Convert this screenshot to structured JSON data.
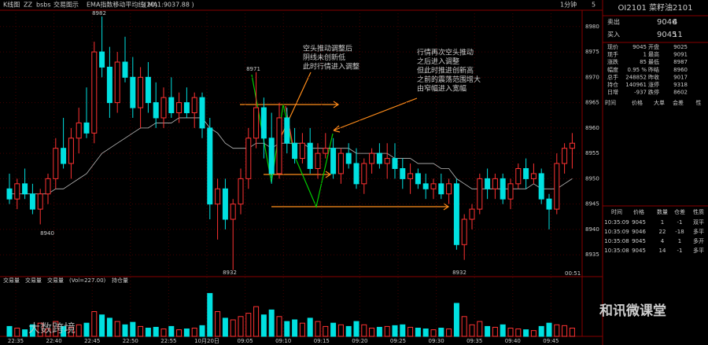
{
  "toolbar": {
    "items": [
      "K线图",
      "ZZ",
      "bsbs",
      "交易图示",
      "EMA指数移动平均线(20)",
      "( MA1:9037.88 )"
    ],
    "period": "1分钟",
    "count": "5"
  },
  "chart_data": {
    "type": "candlestick",
    "candles": [
      [
        8948,
        8951,
        8945,
        8946
      ],
      [
        8946,
        8950,
        8944,
        8949
      ],
      [
        8949,
        8952,
        8946,
        8947
      ],
      [
        8947,
        8949,
        8943,
        8944
      ],
      [
        8944,
        8948,
        8941,
        8947
      ],
      [
        8947,
        8951,
        8945,
        8950
      ],
      [
        8950,
        8958,
        8948,
        8956
      ],
      [
        8956,
        8962,
        8952,
        8953
      ],
      [
        8953,
        8960,
        8950,
        8958
      ],
      [
        8958,
        8964,
        8955,
        8961
      ],
      [
        8961,
        8968,
        8958,
        8959
      ],
      [
        8959,
        8977,
        8957,
        8975
      ],
      [
        8975,
        8982,
        8970,
        8972
      ],
      [
        8972,
        8976,
        8962,
        8965
      ],
      [
        8965,
        8975,
        8963,
        8973
      ],
      [
        8973,
        8978,
        8969,
        8970
      ],
      [
        8970,
        8974,
        8962,
        8964
      ],
      [
        8964,
        8972,
        8960,
        8970
      ],
      [
        8970,
        8973,
        8963,
        8965
      ],
      [
        8965,
        8969,
        8960,
        8962
      ],
      [
        8962,
        8968,
        8960,
        8966
      ],
      [
        8966,
        8970,
        8962,
        8963
      ],
      [
        8963,
        8967,
        8961,
        8965
      ],
      [
        8965,
        8968,
        8962,
        8963
      ],
      [
        8963,
        8967,
        8960,
        8966
      ],
      [
        8966,
        8967,
        8958,
        8960
      ],
      [
        8960,
        8962,
        8942,
        8945
      ],
      [
        8945,
        8950,
        8938,
        8948
      ],
      [
        8948,
        8950,
        8940,
        8942
      ],
      [
        8942,
        8946,
        8932,
        8945
      ],
      [
        8945,
        8952,
        8943,
        8950
      ],
      [
        8950,
        8960,
        8948,
        8958
      ],
      [
        8958,
        8971,
        8956,
        8964
      ],
      [
        8964,
        8966,
        8954,
        8958
      ],
      [
        8958,
        8963,
        8949,
        8951
      ],
      [
        8951,
        8965,
        8950,
        8962
      ],
      [
        8962,
        8964,
        8955,
        8957
      ],
      [
        8957,
        8960,
        8953,
        8954
      ],
      [
        8954,
        8959,
        8953,
        8957
      ],
      [
        8957,
        8960,
        8951,
        8952
      ],
      [
        8952,
        8957,
        8950,
        8955
      ],
      [
        8955,
        8959,
        8954,
        8956
      ],
      [
        8956,
        8958,
        8950,
        8951
      ],
      [
        8951,
        8956,
        8949,
        8955
      ],
      [
        8955,
        8957,
        8952,
        8953
      ],
      [
        8953,
        8956,
        8948,
        8949
      ],
      [
        8949,
        8954,
        8947,
        8953
      ],
      [
        8953,
        8956,
        8951,
        8955
      ],
      [
        8955,
        8957,
        8952,
        8953
      ],
      [
        8953,
        8957,
        8950,
        8954
      ],
      [
        8954,
        8957,
        8950,
        8952
      ],
      [
        8952,
        8954,
        8948,
        8950
      ],
      [
        8950,
        8953,
        8947,
        8951
      ],
      [
        8951,
        8952,
        8948,
        8949
      ],
      [
        8949,
        8951,
        8946,
        8948
      ],
      [
        8948,
        8950,
        8946,
        8949
      ],
      [
        8949,
        8951,
        8946,
        8947
      ],
      [
        8947,
        8950,
        8945,
        8949
      ],
      [
        8949,
        8950,
        8936,
        8937
      ],
      [
        8937,
        8943,
        8934,
        8942
      ],
      [
        8942,
        8945,
        8940,
        8944
      ],
      [
        8944,
        8951,
        8943,
        8950
      ],
      [
        8950,
        8952,
        8946,
        8948
      ],
      [
        8948,
        8951,
        8946,
        8950
      ],
      [
        8950,
        8951,
        8945,
        8946
      ],
      [
        8946,
        8950,
        8944,
        8949
      ],
      [
        8949,
        8953,
        8948,
        8952
      ],
      [
        8952,
        8954,
        8948,
        8950
      ],
      [
        8950,
        8953,
        8949,
        8951
      ],
      [
        8951,
        8952,
        8945,
        8946
      ],
      [
        8946,
        8947,
        8940,
        8944
      ],
      [
        8944,
        8955,
        8943,
        8953
      ],
      [
        8953,
        8957,
        8951,
        8956
      ],
      [
        8956,
        8959,
        8952,
        8957
      ]
    ],
    "ema": [
      8947,
      8947,
      8947,
      8947,
      8947,
      8947,
      8948,
      8948,
      8949,
      8950,
      8951,
      8953,
      8955,
      8956,
      8957,
      8958,
      8959,
      8960,
      8960,
      8961,
      8961,
      8961,
      8962,
      8962,
      8962,
      8962,
      8960,
      8959,
      8957,
      8956,
      8956,
      8956,
      8957,
      8957,
      8956,
      8957,
      8957,
      8957,
      8957,
      8956,
      8956,
      8956,
      8956,
      8956,
      8956,
      8955,
      8955,
      8955,
      8955,
      8955,
      8954,
      8954,
      8954,
      8953,
      8953,
      8953,
      8952,
      8952,
      8950,
      8949,
      8948,
      8948,
      8948,
      8948,
      8948,
      8948,
      8948,
      8948,
      8949,
      8948,
      8948,
      8948,
      8949,
      8950
    ],
    "volume": [
      60,
      50,
      40,
      70,
      80,
      45,
      90,
      60,
      55,
      70,
      80,
      150,
      130,
      110,
      90,
      70,
      85,
      60,
      50,
      55,
      45,
      60,
      40,
      45,
      50,
      65,
      260,
      150,
      110,
      100,
      120,
      140,
      180,
      130,
      160,
      120,
      90,
      100,
      80,
      110,
      90,
      60,
      80,
      70,
      60,
      90,
      70,
      50,
      55,
      60,
      65,
      70,
      55,
      50,
      45,
      40,
      50,
      45,
      200,
      120,
      70,
      90,
      60,
      55,
      70,
      50,
      45,
      40,
      35,
      60,
      80,
      70,
      65,
      50
    ],
    "ylim": [
      8931,
      8984
    ],
    "yticks": [
      8935,
      8940,
      8945,
      8950,
      8955,
      8960,
      8965,
      8970,
      8975,
      8980
    ],
    "vlim": [
      0,
      300
    ],
    "xlabels": [
      "22:35",
      "22:40",
      "22:45",
      "22:50",
      "22:55",
      "10月20日",
      "09:05",
      "09:10",
      "09:15",
      "09:20",
      "09:25",
      "09:30",
      "09:35",
      "09:40",
      "09:45"
    ],
    "price_marks": [
      "8982",
      "8971",
      "8940",
      "8932",
      "8932"
    ],
    "annotations": [
      [
        "空头推动调整后",
        "阴线未创新低",
        "此时行情进入调整"
      ],
      [
        "行情再次空头推动",
        "之后进入调整",
        "但此时推进创新高",
        "之前的震荡范围增大",
        "由窄幅进入宽幅"
      ]
    ],
    "volume_bar": [
      "交易量",
      "交易量",
      "交易量",
      "(Vol=227.00)",
      "持仓量"
    ],
    "clock": "00:51"
  },
  "quote": {
    "title": "OI2101  菜籽油2101",
    "ask": [
      "卖出",
      "9046",
      "4"
    ],
    "bid": [
      "买入",
      "9045",
      "11"
    ],
    "rows": [
      [
        "现价",
        "9045",
        "开盘",
        "9025"
      ],
      [
        "现手",
        "1",
        "最高",
        "9091"
      ],
      [
        "涨跌",
        "85",
        "最低",
        "8987"
      ],
      [
        "幅度",
        "0.95 %",
        "昨结",
        "8960"
      ],
      [
        "总手",
        "248852",
        "昨收",
        "9017"
      ],
      [
        "持仓",
        "140961",
        "涨停",
        "9318"
      ],
      [
        "日增",
        "-937",
        "跌停",
        "8602"
      ]
    ],
    "head1": [
      "时间",
      "价格",
      "大单",
      "会差",
      "性"
    ],
    "head2": [
      "时间",
      "价格",
      "数量",
      "仓差",
      "性质"
    ],
    "trades": [
      [
        "10:35:09",
        "9045",
        "1",
        "-1",
        "双平"
      ],
      [
        "10:35:09",
        "9046",
        "22",
        "-18",
        "多平"
      ],
      [
        "10:35:08",
        "9045",
        "4",
        "1",
        "多开"
      ],
      [
        "10:35:08",
        "9045",
        "14",
        "-1",
        "多平"
      ]
    ]
  },
  "watermarks": [
    "大数跨境",
    "和讯微课堂"
  ]
}
